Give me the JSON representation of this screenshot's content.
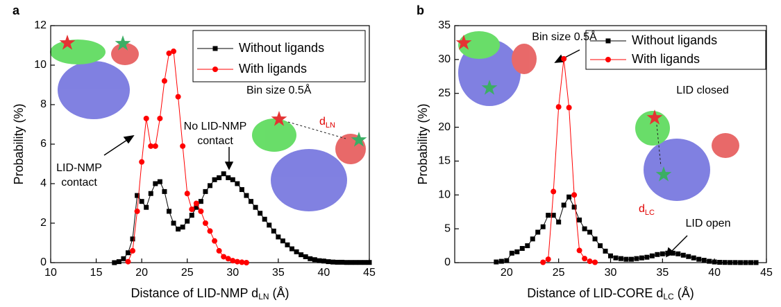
{
  "chart_data": [
    {
      "type": "line",
      "panel_label": "a",
      "ylabel": "Probability (%)",
      "xlabel": "Distance of LID-NMP d",
      "xlabel_sub": "LN",
      "xlabel_end": " (Å)",
      "xlim": [
        10,
        45
      ],
      "xticks": [
        10,
        15,
        20,
        25,
        30,
        35,
        40,
        45
      ],
      "ylim": [
        0,
        12
      ],
      "yticks": [
        0,
        2,
        4,
        6,
        8,
        10,
        12
      ],
      "legend": "upper right",
      "series": [
        {
          "name": "Without ligands",
          "color": "#000000",
          "marker": "square",
          "x": [
            17,
            17.5,
            18,
            18.5,
            19,
            19.5,
            20,
            20.5,
            21,
            21.5,
            22,
            22.5,
            23,
            23.5,
            24,
            24.5,
            25,
            25.5,
            26,
            26.5,
            27,
            27.5,
            28,
            28.5,
            29,
            29.5,
            30,
            30.5,
            31,
            31.5,
            32,
            32.5,
            33,
            33.5,
            34,
            34.5,
            35,
            35.5,
            36,
            36.5,
            37,
            37.5,
            38,
            38.5,
            39,
            39.5,
            40,
            40.5,
            41,
            41.5,
            42,
            42.5,
            43,
            43.5,
            44,
            44.5,
            45
          ],
          "values": [
            0,
            0.05,
            0.2,
            0.5,
            1.2,
            3.4,
            3.1,
            2.8,
            3.5,
            4.0,
            4.1,
            3.6,
            2.6,
            2.0,
            1.7,
            1.8,
            2.1,
            2.4,
            2.8,
            3.1,
            3.6,
            3.9,
            4.2,
            4.3,
            4.5,
            4.3,
            4.2,
            4.0,
            3.7,
            3.4,
            3.1,
            2.8,
            2.5,
            2.2,
            1.9,
            1.6,
            1.3,
            1.1,
            0.9,
            0.7,
            0.55,
            0.4,
            0.3,
            0.2,
            0.15,
            0.1,
            0.08,
            0.05,
            0.03,
            0.02,
            0.02,
            0.01,
            0.01,
            0.01,
            0.01,
            0.01,
            0.01
          ]
        },
        {
          "name": "With ligands",
          "color": "#ff0000",
          "marker": "circle",
          "x": [
            18.5,
            19,
            19.5,
            20,
            20.5,
            21,
            21.5,
            22,
            22.5,
            23,
            23.5,
            24,
            24.5,
            25,
            25.5,
            26,
            26.5,
            27,
            27.5,
            28,
            28.5,
            29,
            29.5,
            30,
            30.5,
            31,
            31.5
          ],
          "values": [
            0.05,
            0.6,
            2.6,
            5.1,
            7.3,
            5.9,
            5.9,
            7.3,
            9.2,
            10.6,
            10.7,
            8.4,
            5.9,
            3.5,
            2.7,
            3.0,
            2.6,
            2.0,
            1.6,
            1.1,
            0.6,
            0.3,
            0.2,
            0.1,
            0.05,
            0.02,
            0
          ]
        }
      ],
      "annotations": [
        {
          "lines": [
            "Bin size 0.5Å"
          ]
        },
        {
          "lines": [
            "LID-NMP",
            "contact"
          ]
        },
        {
          "lines": [
            "No LID-NMP",
            "contact"
          ]
        },
        {
          "lines": [
            "d"
          ],
          "sub": "LN"
        }
      ]
    },
    {
      "type": "line",
      "panel_label": "b",
      "ylabel": "Probability (%)",
      "xlabel": "Distance of LID-CORE d",
      "xlabel_sub": "LC",
      "xlabel_end": " (Å)",
      "xlim": [
        15,
        45
      ],
      "xticks": [
        20,
        25,
        30,
        35,
        40,
        45
      ],
      "ylim": [
        0,
        35
      ],
      "yticks": [
        0,
        5,
        10,
        15,
        20,
        25,
        30,
        35
      ],
      "legend": "upper right",
      "series": [
        {
          "name": "Without ligands",
          "color": "#000000",
          "marker": "square",
          "x": [
            19,
            19.5,
            20,
            20.5,
            21,
            21.5,
            22,
            22.5,
            23,
            23.5,
            24,
            24.5,
            25,
            25.5,
            26,
            26.5,
            27,
            27.5,
            28,
            28.5,
            29,
            29.5,
            30,
            30.5,
            31,
            31.5,
            32,
            32.5,
            33,
            33.5,
            34,
            34.5,
            35,
            35.5,
            36,
            36.5,
            37,
            37.5,
            38,
            38.5,
            39,
            39.5,
            40,
            40.5,
            41,
            41.5,
            42,
            42.5,
            43,
            43.5,
            44
          ],
          "values": [
            0.1,
            0.2,
            0.3,
            1.4,
            1.6,
            2.1,
            2.5,
            3.5,
            4.5,
            5.3,
            7.0,
            7.0,
            6.0,
            8.5,
            9.7,
            8.2,
            6.3,
            5.0,
            4.5,
            3.5,
            2.5,
            1.7,
            1.0,
            0.7,
            0.6,
            0.5,
            0.5,
            0.6,
            0.7,
            0.8,
            1.0,
            1.2,
            1.3,
            1.4,
            1.4,
            1.3,
            1.1,
            0.9,
            0.7,
            0.5,
            0.35,
            0.2,
            0.1,
            0.05,
            0.03,
            0.02,
            0.02,
            0.01,
            0.01,
            0.01,
            0.01
          ]
        },
        {
          "name": "With ligands",
          "color": "#ff0000",
          "marker": "circle",
          "x": [
            23.5,
            24,
            24.5,
            25,
            25.5,
            26,
            26.5,
            27,
            27.5,
            28,
            28.5
          ],
          "values": [
            0.05,
            0.5,
            10.5,
            23.0,
            30.1,
            22.9,
            10.0,
            1.8,
            0.6,
            0.2,
            0.05
          ]
        }
      ],
      "annotations": [
        {
          "lines": [
            "Bin size 0.5Å"
          ]
        },
        {
          "lines": [
            "LID closed"
          ]
        },
        {
          "lines": [
            "LID open"
          ]
        },
        {
          "lines": [
            "d"
          ],
          "sub": "LC"
        }
      ]
    }
  ]
}
